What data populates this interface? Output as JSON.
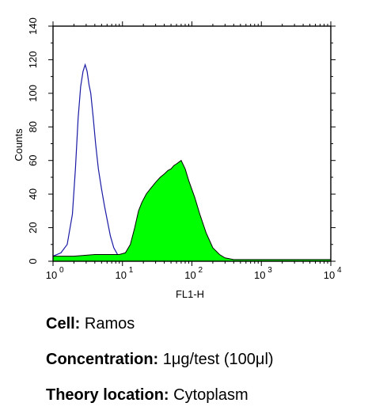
{
  "chart_data": {
    "type": "area",
    "xlabel": "FL1-H",
    "ylabel": "Counts",
    "xscale": "log",
    "xlim": [
      1,
      10000
    ],
    "ylim": [
      0,
      140
    ],
    "x_ticks": [
      {
        "base": "10",
        "exp": "0"
      },
      {
        "base": "10",
        "exp": "1"
      },
      {
        "base": "10",
        "exp": "2"
      },
      {
        "base": "10",
        "exp": "3"
      },
      {
        "base": "10",
        "exp": "4"
      }
    ],
    "y_ticks": [
      "0",
      "20",
      "40",
      "60",
      "80",
      "100",
      "120",
      "140"
    ],
    "grid": false,
    "legend": "none",
    "series": [
      {
        "style": "outline",
        "color": "#1a1aa6",
        "x": [
          1.0,
          1.3,
          1.6,
          1.9,
          2.1,
          2.3,
          2.5,
          2.7,
          2.9,
          3.0,
          3.1,
          3.3,
          3.5,
          3.8,
          4.1,
          4.5,
          5.0,
          5.5,
          6.0,
          6.7,
          7.5,
          8.5,
          9.5
        ],
        "values": [
          3,
          5,
          10,
          28,
          55,
          85,
          104,
          113,
          117,
          115,
          113,
          105,
          100,
          85,
          70,
          55,
          43,
          33,
          25,
          15,
          8,
          4,
          2
        ]
      },
      {
        "style": "filled",
        "color": "#00ff00",
        "x": [
          1.0,
          2.0,
          4.0,
          7.0,
          9.0,
          11,
          13,
          15,
          17,
          19,
          22,
          25,
          30,
          35,
          40,
          45,
          50,
          55,
          60,
          65,
          70,
          80,
          90,
          110,
          130,
          160,
          200,
          250,
          300,
          400,
          600,
          1000,
          2000,
          5000,
          10000
        ],
        "values": [
          3,
          3,
          4,
          4,
          4,
          5,
          10,
          20,
          30,
          35,
          40,
          43,
          47,
          50,
          52,
          54,
          55,
          57,
          58,
          59,
          60,
          55,
          48,
          38,
          28,
          17,
          8,
          4,
          2,
          1,
          1,
          1,
          1,
          1,
          1
        ]
      }
    ]
  },
  "captions": {
    "cell_label": "Cell:",
    "cell_value": "Ramos",
    "concentration_label": "Concentration:",
    "concentration_value": "1μg/test (100μl)",
    "theory_label": "Theory location:",
    "theory_value": "Cytoplasm"
  }
}
